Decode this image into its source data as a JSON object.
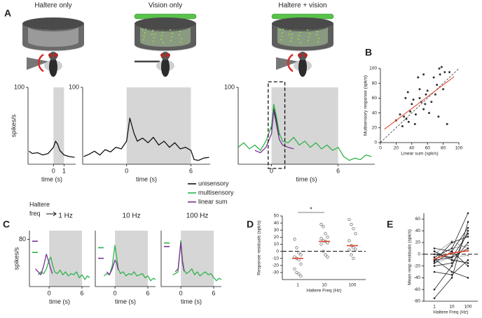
{
  "chart_data": [
    {
      "type": "line",
      "panel_label": "A",
      "title": "Haltere only",
      "xlabel": "time (s)",
      "ylabel": "spikes/s",
      "xlim": [
        -2.4,
        2.1
      ],
      "ylim": [
        0,
        100
      ],
      "xticks": [
        0,
        1
      ],
      "yticks": [
        100
      ],
      "shade": [
        0,
        1
      ],
      "x": [
        -2.3,
        -2,
        -1.5,
        -1,
        -0.5,
        0,
        0.2,
        0.4,
        0.6,
        0.8,
        1,
        1.5,
        2
      ],
      "series": [
        {
          "color": "#111111",
          "values": [
            17,
            14,
            15,
            12,
            14,
            22,
            30,
            26,
            18,
            15,
            12,
            10,
            9
          ]
        }
      ]
    },
    {
      "type": "line",
      "title": "Vision only",
      "xlabel": "time (s)",
      "xlim": [
        -4.1,
        7.8
      ],
      "ylim": [
        0,
        100
      ],
      "xticks": [
        0,
        6
      ],
      "yticks": [
        100
      ],
      "shade": [
        0,
        6
      ],
      "x": [
        -4,
        -3.5,
        -3,
        -2.5,
        -2,
        -1.5,
        -1,
        -0.5,
        0,
        0.3,
        0.7,
        1,
        1.5,
        2,
        2.5,
        3,
        3.5,
        4,
        4.5,
        5,
        5.5,
        6,
        6.3,
        6.7,
        7.2,
        7.7
      ],
      "series": [
        {
          "color": "#111111",
          "values": [
            10,
            13,
            17,
            12,
            19,
            16,
            22,
            20,
            30,
            60,
            40,
            30,
            34,
            28,
            35,
            25,
            30,
            22,
            28,
            20,
            22,
            18,
            6,
            5,
            8,
            9
          ]
        }
      ]
    },
    {
      "type": "line",
      "title": "Haltere + vision",
      "xlabel": "time (s)",
      "xlim": [
        -3,
        9.3
      ],
      "ylim": [
        0,
        100
      ],
      "xticks": [
        0,
        6
      ],
      "yticks": [
        100
      ],
      "shade": [
        0,
        6
      ],
      "highlight": [
        -0.3,
        1.2
      ],
      "x": [
        -3,
        -2.5,
        -2,
        -1.5,
        -1,
        -0.5,
        0,
        0.2,
        0.4,
        0.7,
        1,
        1.5,
        2,
        2.5,
        3,
        3.5,
        4,
        4.5,
        5,
        5.5,
        6,
        6.5,
        7,
        7.5,
        8,
        8.5,
        9
      ],
      "series": [
        {
          "name": "unisensory",
          "color": "#111111",
          "values": [
            null,
            null,
            null,
            null,
            null,
            null,
            45,
            72,
            60,
            38,
            null,
            null,
            null,
            null,
            null,
            null,
            null,
            null,
            null,
            null,
            null,
            null,
            null,
            null,
            null,
            null,
            null
          ]
        },
        {
          "name": "multisensory",
          "color": "#2db34a",
          "values": [
            22,
            28,
            20,
            25,
            18,
            30,
            50,
            78,
            65,
            40,
            30,
            28,
            35,
            25,
            30,
            22,
            28,
            20,
            25,
            18,
            22,
            10,
            5,
            8,
            6,
            12,
            10
          ]
        },
        {
          "name": "linear sum",
          "color": "#7b3294",
          "values": [
            null,
            null,
            null,
            18,
            15,
            22,
            40,
            70,
            55,
            32,
            25,
            22,
            20,
            null,
            null,
            null,
            null,
            null,
            null,
            null,
            null,
            null,
            null,
            null,
            null,
            null,
            null
          ]
        }
      ]
    },
    {
      "type": "scatter",
      "panel_label": "B",
      "xlabel": "Linear sum (spk/s)",
      "ylabel": "Multisensory response (spk/s)",
      "xlim": [
        0,
        100
      ],
      "ylim": [
        0,
        100
      ],
      "xticks": [
        0,
        20,
        40,
        60,
        80,
        100
      ],
      "yticks": [
        0,
        20,
        40,
        60,
        80,
        100
      ],
      "x": [
        20,
        25,
        28,
        30,
        32,
        33,
        35,
        36,
        38,
        40,
        42,
        44,
        45,
        48,
        50,
        50,
        52,
        55,
        55,
        57,
        58,
        60,
        62,
        65,
        68,
        70,
        72,
        74,
        75,
        76,
        78,
        80,
        82,
        85,
        88
      ],
      "values": [
        30,
        38,
        22,
        35,
        60,
        32,
        68,
        28,
        42,
        52,
        58,
        25,
        38,
        88,
        60,
        72,
        55,
        92,
        45,
        52,
        65,
        70,
        40,
        55,
        88,
        65,
        78,
        35,
        100,
        92,
        102,
        72,
        95,
        25,
        95
      ],
      "color": "#333333",
      "fit": {
        "x": [
          5,
          94
        ],
        "values": [
          18,
          89
        ],
        "color": "#e0412c"
      }
    },
    {
      "type": "line",
      "panel_label": "C",
      "header": [
        "Haltere",
        "freq"
      ],
      "title": "1 Hz",
      "xlabel": "time (s)",
      "ylabel": "spikes/s",
      "xlim": [
        -3.6,
        7.4
      ],
      "ylim": [
        0,
        95
      ],
      "xticks": [
        0,
        6
      ],
      "yticks": [
        80
      ],
      "shade": [
        0,
        6
      ],
      "x": [
        -3.5,
        -3,
        -2.5,
        -2,
        -1.5,
        -1,
        -0.5,
        0,
        0.3,
        0.6,
        1,
        1.5,
        2,
        2.5,
        3,
        3.5,
        4,
        4.5,
        5,
        5.5,
        6,
        6.5,
        7,
        7.4
      ],
      "series": [
        {
          "color": "#2db34a",
          "level": 58,
          "values": [
            null,
            null,
            null,
            20,
            25,
            22,
            30,
            45,
            50,
            38,
            25,
            22,
            28,
            20,
            25,
            18,
            22,
            20,
            25,
            15,
            20,
            12,
            18,
            15
          ]
        },
        {
          "color": "#7b3294",
          "level": 77,
          "values": [
            null,
            null,
            30,
            25,
            20,
            35,
            55,
            40,
            30,
            22,
            null,
            null,
            null,
            null,
            null,
            null,
            null,
            null,
            null,
            null,
            null,
            null,
            null,
            null
          ]
        }
      ]
    },
    {
      "type": "line",
      "title": "10 Hz",
      "xlabel": "time (s)",
      "xlim": [
        -3.6,
        7.4
      ],
      "ylim": [
        0,
        95
      ],
      "xticks": [
        0,
        6
      ],
      "shade": [
        0,
        6
      ],
      "x": [
        -3.5,
        -3,
        -2.5,
        -2,
        -1.5,
        -1,
        -0.5,
        0,
        0.3,
        0.6,
        1,
        1.5,
        2,
        2.5,
        3,
        3.5,
        4,
        4.5,
        5,
        5.5,
        6,
        6.5,
        7,
        7.4
      ],
      "series": [
        {
          "color": "#2db34a",
          "level": 66,
          "values": [
            null,
            null,
            null,
            18,
            22,
            20,
            35,
            70,
            50,
            30,
            22,
            25,
            18,
            22,
            20,
            25,
            18,
            20,
            22,
            15,
            18,
            10,
            14,
            12
          ]
        },
        {
          "color": "#7b3294",
          "level": 48,
          "values": [
            null,
            null,
            null,
            null,
            25,
            20,
            30,
            45,
            40,
            28,
            null,
            null,
            null,
            null,
            null,
            null,
            null,
            null,
            null,
            null,
            null,
            null,
            null,
            null
          ]
        }
      ]
    },
    {
      "type": "line",
      "title": "100 Hz",
      "xlabel": "time (s)",
      "xlim": [
        -3.6,
        7.4
      ],
      "ylim": [
        0,
        95
      ],
      "xticks": [
        0,
        6
      ],
      "shade": [
        0,
        6
      ],
      "x": [
        -3.5,
        -3,
        -2.5,
        -2,
        -1.5,
        -1,
        -0.5,
        0,
        0.3,
        0.6,
        1,
        1.5,
        2,
        2.5,
        3,
        3.5,
        4,
        4.5,
        5,
        5.5,
        6,
        6.5,
        7,
        7.4
      ],
      "series": [
        {
          "color": "#2db34a",
          "level": 74,
          "values": [
            null,
            null,
            null,
            null,
            20,
            22,
            25,
            78,
            45,
            28,
            22,
            25,
            30,
            20,
            25,
            18,
            22,
            25,
            20,
            22,
            15,
            10,
            14,
            12
          ]
        },
        {
          "color": "#7b3294",
          "level": 68,
          "values": [
            null,
            null,
            null,
            null,
            null,
            25,
            30,
            75,
            40,
            26,
            null,
            null,
            null,
            null,
            null,
            null,
            null,
            null,
            null,
            null,
            null,
            null,
            null,
            null
          ]
        }
      ]
    },
    {
      "type": "strip",
      "panel_label": "D",
      "xlabel": "Haltere Freq (Hz)",
      "ylabel": "Response residuals (spk/s)",
      "annotation": "*",
      "categories": [
        "1",
        "10",
        "100"
      ],
      "ylim": [
        -40,
        50
      ],
      "yticks": [
        -30,
        -20,
        -10,
        0,
        10,
        20,
        30,
        40,
        50
      ],
      "values": [
        [
          17,
          5,
          -2,
          -5,
          -8,
          -10,
          -12,
          -18,
          -25,
          -30,
          -32,
          -35
        ],
        [
          38,
          35,
          25,
          20,
          18,
          15,
          14,
          12,
          10,
          0,
          -5,
          -8
        ],
        [
          45,
          38,
          32,
          25,
          15,
          8,
          5,
          3,
          2,
          -5,
          -10
        ]
      ],
      "medians": [
        -10,
        14,
        8
      ],
      "color": "#777777",
      "median_color": "#e0412c"
    },
    {
      "type": "slope",
      "panel_label": "E",
      "xlabel": "Haltere Freq (Hz)",
      "ylabel": "Mean resp residuals (spk/s)",
      "categories": [
        "1",
        "10",
        "100"
      ],
      "ylim": [
        -80,
        70
      ],
      "yticks": [
        -80,
        -60,
        -40,
        -20,
        0,
        20,
        40,
        60
      ],
      "series": [
        {
          "color": "#999999",
          "values": [
            -5,
            10,
            15
          ]
        },
        {
          "color": "#999999",
          "values": [
            -15,
            -5,
            -2
          ]
        },
        {
          "color": "#999999",
          "values": [
            5,
            -8,
            -15
          ]
        },
        {
          "color": "#999999",
          "values": [
            0,
            22,
            10
          ]
        },
        {
          "color": "#222222",
          "values": [
            -60,
            -20,
            40
          ]
        },
        {
          "color": "#222222",
          "values": [
            -75,
            -40,
            55
          ]
        },
        {
          "color": "#222222",
          "values": [
            -10,
            -5,
            35
          ]
        },
        {
          "color": "#222222",
          "values": [
            -5,
            10,
            70
          ]
        },
        {
          "color": "#222222",
          "values": [
            0,
            -5,
            10
          ]
        },
        {
          "color": "#222222",
          "values": [
            -15,
            5,
            45
          ]
        },
        {
          "color": "#222222",
          "values": [
            5,
            -10,
            -15
          ]
        },
        {
          "color": "#222222",
          "values": [
            -20,
            -15,
            20
          ]
        },
        {
          "color": "#222222",
          "values": [
            -8,
            -30,
            -40
          ]
        },
        {
          "color": "#222222",
          "values": [
            10,
            5,
            -20
          ]
        },
        {
          "color": "#222222",
          "values": [
            -30,
            -35,
            -10
          ]
        },
        {
          "color": "#222222",
          "values": [
            -12,
            20,
            30
          ]
        },
        {
          "color": "#e0412c",
          "values": [
            -8,
            2,
            6
          ]
        }
      ]
    }
  ]
}
